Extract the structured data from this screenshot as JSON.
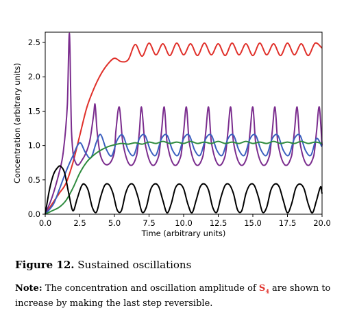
{
  "chart_data": {
    "type": "line",
    "title": "",
    "xlabel": "Time (arbitrary units)",
    "ylabel": "Concentration (arbitrary units)",
    "xlim": [
      0.0,
      20.0
    ],
    "ylim": [
      0.0,
      2.65
    ],
    "xticks": [
      0.0,
      2.5,
      5.0,
      7.5,
      10.0,
      12.5,
      15.0,
      17.5,
      20.0
    ],
    "xtick_labels": [
      "0.0",
      "2.5",
      "5.0",
      "7.5",
      "10.0",
      "12.5",
      "15.0",
      "17.5",
      "20.0"
    ],
    "yticks": [
      0.0,
      0.5,
      1.0,
      1.5,
      2.0,
      2.5
    ],
    "ytick_labels": [
      "0.0",
      "0.5",
      "1.0",
      "1.5",
      "2.0",
      "2.5"
    ],
    "grid": false,
    "legend": "none",
    "series": [
      {
        "color": "#e0302a",
        "x": [
          0,
          0.5,
          1.0,
          1.5,
          2.0,
          2.5,
          3.0,
          3.5,
          4.0,
          4.5,
          5.0,
          5.5,
          6.0,
          6.5,
          7.0,
          7.5,
          8.0,
          8.5,
          9.0,
          9.5,
          10.0,
          10.5,
          11.0,
          11.5,
          12.0,
          12.5,
          13.0,
          13.5,
          14.0,
          14.5,
          15.0,
          15.5,
          16.0,
          16.5,
          17.0,
          17.5,
          18.0,
          18.5,
          19.0,
          19.5,
          20.0
        ],
        "y": [
          0.0,
          0.15,
          0.3,
          0.45,
          0.75,
          1.15,
          1.55,
          1.82,
          2.03,
          2.18,
          2.27,
          2.22,
          2.25,
          2.47,
          2.3,
          2.49,
          2.32,
          2.48,
          2.31,
          2.49,
          2.32,
          2.48,
          2.31,
          2.49,
          2.32,
          2.48,
          2.31,
          2.49,
          2.32,
          2.48,
          2.31,
          2.49,
          2.32,
          2.48,
          2.31,
          2.49,
          2.32,
          2.48,
          2.31,
          2.49,
          2.42
        ]
      },
      {
        "color": "#7b2d8e",
        "x": [
          0,
          0.5,
          1.0,
          1.3,
          1.6,
          1.75,
          1.9,
          2.2,
          2.7,
          3.2,
          3.5,
          3.6,
          3.75,
          4.0,
          4.5,
          5.0,
          5.1,
          5.35,
          5.6,
          6.1,
          6.6,
          6.8,
          6.95,
          7.2,
          7.7,
          8.2,
          8.4,
          8.6,
          8.8,
          9.3,
          9.8,
          10.0,
          10.2,
          10.4,
          10.9,
          11.4,
          11.6,
          11.8,
          12.0,
          12.5,
          13.0,
          13.2,
          13.4,
          13.6,
          14.1,
          14.6,
          14.8,
          15.0,
          15.2,
          15.7,
          16.2,
          16.4,
          16.6,
          16.8,
          17.3,
          17.8,
          18.0,
          18.2,
          18.4,
          18.9,
          19.4,
          19.6,
          19.8,
          20.0
        ],
        "y": [
          0.0,
          0.25,
          0.6,
          0.9,
          1.6,
          2.63,
          1.2,
          0.75,
          0.8,
          1.05,
          1.45,
          1.6,
          1.2,
          0.85,
          0.72,
          0.9,
          1.2,
          1.56,
          1.05,
          0.72,
          0.85,
          1.2,
          1.56,
          1.05,
          0.72,
          0.85,
          1.2,
          1.56,
          1.05,
          0.72,
          0.85,
          1.2,
          1.56,
          1.05,
          0.72,
          0.85,
          1.2,
          1.56,
          1.05,
          0.72,
          0.85,
          1.2,
          1.56,
          1.05,
          0.72,
          0.85,
          1.2,
          1.56,
          1.05,
          0.72,
          0.85,
          1.2,
          1.56,
          1.05,
          0.72,
          0.85,
          1.2,
          1.56,
          1.05,
          0.72,
          0.85,
          1.2,
          1.56,
          1.0
        ]
      },
      {
        "color": "#3a5fbf",
        "x": [
          0,
          0.6,
          1.0,
          1.5,
          2.0,
          2.5,
          2.9,
          3.3,
          3.7,
          4.0,
          4.4,
          4.8,
          5.2,
          5.6,
          6.0,
          6.4,
          6.8,
          7.2,
          7.6,
          8.0,
          8.4,
          8.8,
          9.2,
          9.6,
          10.0,
          10.4,
          10.8,
          11.2,
          11.6,
          12.0,
          12.4,
          12.8,
          13.2,
          13.6,
          14.0,
          14.4,
          14.8,
          15.2,
          15.6,
          16.0,
          16.4,
          16.8,
          17.2,
          17.6,
          18.0,
          18.4,
          18.8,
          19.2,
          19.6,
          20.0
        ],
        "y": [
          0.0,
          0.15,
          0.35,
          0.62,
          0.85,
          1.04,
          0.9,
          0.82,
          1.05,
          1.16,
          0.95,
          0.85,
          1.08,
          1.15,
          0.93,
          0.86,
          1.1,
          1.15,
          0.93,
          0.86,
          1.1,
          1.15,
          0.93,
          0.86,
          1.1,
          1.15,
          0.93,
          0.86,
          1.1,
          1.15,
          0.93,
          0.86,
          1.1,
          1.15,
          0.93,
          0.86,
          1.1,
          1.15,
          0.93,
          0.86,
          1.1,
          1.15,
          0.93,
          0.86,
          1.1,
          1.15,
          0.93,
          0.86,
          1.1,
          0.98
        ]
      },
      {
        "color": "#2e8b3e",
        "x": [
          0,
          0.5,
          1.0,
          1.5,
          2.0,
          2.5,
          3.0,
          3.5,
          4.0,
          4.5,
          5.0,
          5.5,
          6.0,
          6.5,
          7.0,
          7.5,
          8.0,
          8.5,
          9.0,
          9.5,
          10.0,
          10.5,
          11.0,
          11.5,
          12.0,
          12.5,
          13.0,
          13.5,
          14.0,
          14.5,
          15.0,
          15.5,
          16.0,
          16.5,
          17.0,
          17.5,
          18.0,
          18.5,
          19.0,
          19.5,
          20.0
        ],
        "y": [
          0.0,
          0.05,
          0.1,
          0.2,
          0.38,
          0.6,
          0.76,
          0.86,
          0.93,
          0.98,
          1.01,
          1.03,
          1.02,
          1.04,
          1.02,
          1.05,
          1.03,
          1.06,
          1.03,
          1.05,
          1.03,
          1.06,
          1.03,
          1.05,
          1.03,
          1.06,
          1.03,
          1.05,
          1.03,
          1.06,
          1.03,
          1.05,
          1.03,
          1.06,
          1.03,
          1.05,
          1.03,
          1.06,
          1.03,
          1.05,
          1.03
        ]
      },
      {
        "color": "#000000",
        "x": [
          0,
          0.3,
          0.6,
          0.9,
          1.1,
          1.4,
          1.7,
          2.0,
          2.3,
          2.6,
          2.8,
          3.1,
          3.4,
          3.7,
          4.0,
          4.3,
          4.6,
          4.9,
          5.2,
          5.5,
          5.8,
          6.1,
          6.4,
          6.7,
          7.0,
          7.3,
          7.6,
          7.9,
          8.2,
          8.5,
          8.8,
          9.1,
          9.4,
          9.7,
          10.0,
          10.3,
          10.6,
          10.9,
          11.2,
          11.5,
          11.8,
          12.1,
          12.4,
          12.7,
          13.0,
          13.3,
          13.6,
          13.9,
          14.2,
          14.5,
          14.8,
          15.1,
          15.4,
          15.7,
          16.0,
          16.3,
          16.6,
          16.9,
          17.2,
          17.5,
          17.8,
          18.1,
          18.4,
          18.7,
          19.0,
          19.3,
          19.6,
          19.9,
          20.0
        ],
        "y": [
          0.0,
          0.35,
          0.58,
          0.68,
          0.7,
          0.6,
          0.3,
          0.05,
          0.22,
          0.4,
          0.44,
          0.35,
          0.1,
          0.03,
          0.25,
          0.42,
          0.43,
          0.3,
          0.06,
          0.05,
          0.3,
          0.43,
          0.42,
          0.25,
          0.03,
          0.1,
          0.35,
          0.44,
          0.4,
          0.2,
          0.02,
          0.15,
          0.38,
          0.44,
          0.37,
          0.15,
          0.02,
          0.2,
          0.4,
          0.44,
          0.35,
          0.1,
          0.03,
          0.25,
          0.42,
          0.43,
          0.3,
          0.06,
          0.05,
          0.3,
          0.43,
          0.42,
          0.25,
          0.03,
          0.1,
          0.35,
          0.44,
          0.4,
          0.2,
          0.02,
          0.15,
          0.38,
          0.44,
          0.37,
          0.15,
          0.02,
          0.2,
          0.4,
          0.3
        ]
      }
    ]
  },
  "caption": {
    "figure_label": "Figure 12.",
    "figure_title": "Sustained oscillations",
    "note_label": "Note:",
    "note_text_1": "The concentration and oscillation amplitude of",
    "species_letter": "S",
    "species_subscript": "4",
    "note_text_2": "are shown to increase by making the last step reversible."
  }
}
